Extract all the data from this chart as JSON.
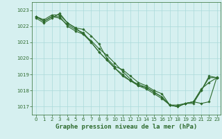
{
  "x": [
    0,
    1,
    2,
    3,
    4,
    5,
    6,
    7,
    8,
    9,
    10,
    11,
    12,
    13,
    14,
    15,
    16,
    17,
    18,
    19,
    20,
    21,
    22,
    23
  ],
  "line1": [
    1022.6,
    1022.4,
    1022.7,
    1022.7,
    1022.2,
    1021.9,
    1021.8,
    1021.4,
    1020.9,
    1020.0,
    1019.5,
    1019.3,
    1018.9,
    1018.5,
    1018.3,
    1018.0,
    1017.8,
    1017.1,
    1017.1,
    1017.2,
    1017.2,
    1018.0,
    1018.8,
    1018.8
  ],
  "line2": [
    1022.6,
    1022.3,
    1022.6,
    1022.6,
    1022.0,
    1021.7,
    1021.5,
    1021.0,
    1020.4,
    1019.9,
    1019.4,
    1018.9,
    1018.6,
    1018.4,
    1018.2,
    1017.9,
    1017.6,
    1017.1,
    1017.0,
    1017.2,
    1017.3,
    1018.0,
    1018.9,
    1018.8
  ],
  "line3": [
    1022.5,
    1022.2,
    1022.5,
    1022.8,
    1022.2,
    1021.9,
    1021.5,
    1021.1,
    1020.6,
    1020.2,
    1019.7,
    1019.2,
    1018.7,
    1018.3,
    1018.1,
    1017.8,
    1017.5,
    1017.1,
    1017.0,
    1017.2,
    1017.3,
    1017.2,
    1017.3,
    1018.85
  ],
  "line4": [
    1022.6,
    1022.3,
    1022.6,
    1022.5,
    1022.1,
    1021.8,
    1021.6,
    1021.0,
    1020.4,
    1019.9,
    1019.4,
    1019.0,
    1018.6,
    1018.3,
    1018.2,
    1017.9,
    1017.6,
    1017.1,
    1017.0,
    1017.2,
    1017.3,
    1018.1,
    1018.5,
    1018.8
  ],
  "line_color": "#2d6a2d",
  "marker": "D",
  "marker_size": 1.8,
  "bg_color": "#d6f0f0",
  "grid_color": "#aadada",
  "xlabel": "Graphe pression niveau de la mer (hPa)",
  "ylim": [
    1016.5,
    1023.5
  ],
  "xlim": [
    -0.5,
    23.5
  ],
  "yticks": [
    1017,
    1018,
    1019,
    1020,
    1021,
    1022,
    1023
  ],
  "xticks": [
    0,
    1,
    2,
    3,
    4,
    5,
    6,
    7,
    8,
    9,
    10,
    11,
    12,
    13,
    14,
    15,
    16,
    17,
    18,
    19,
    20,
    21,
    22,
    23
  ],
  "tick_fontsize": 5.0,
  "xlabel_fontsize": 6.5,
  "line_width": 0.8
}
